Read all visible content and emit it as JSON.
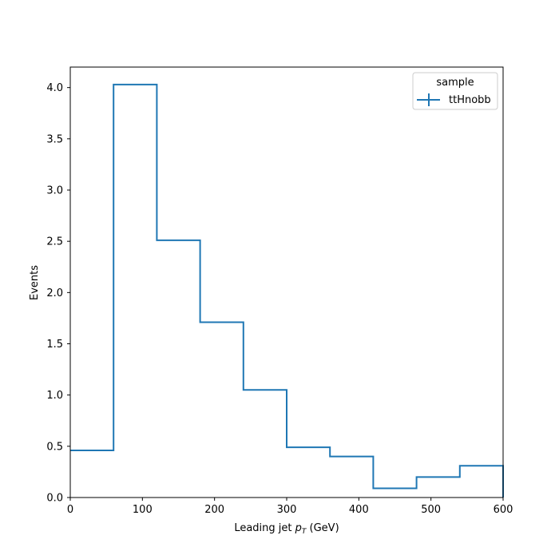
{
  "chart_data": {
    "type": "histogram-step",
    "xlabel_main": "Leading jet  ",
    "xlabel_p": "p",
    "xlabel_sub": "T",
    "xlabel_unit": " (GeV)",
    "ylabel": "Events",
    "xlim": [
      0,
      600
    ],
    "ylim": [
      0,
      4.2
    ],
    "xticks": [
      0,
      100,
      200,
      300,
      400,
      500,
      600
    ],
    "yticks": [
      0.0,
      0.5,
      1.0,
      1.5,
      2.0,
      2.5,
      3.0,
      3.5,
      4.0
    ],
    "xtick_labels": [
      "0",
      "100",
      "200",
      "300",
      "400",
      "500",
      "600"
    ],
    "ytick_labels": [
      "0.0",
      "0.5",
      "1.0",
      "1.5",
      "2.0",
      "2.5",
      "3.0",
      "3.5",
      "4.0"
    ],
    "bin_edges": [
      0,
      60,
      120,
      180,
      240,
      300,
      360,
      420,
      480,
      540,
      600
    ],
    "series": [
      {
        "name": "ttHnobb",
        "color": "#1f77b4",
        "values": [
          0.46,
          4.03,
          2.51,
          1.71,
          1.05,
          0.49,
          0.4,
          0.09,
          0.2,
          0.31
        ]
      }
    ],
    "legend": {
      "title": "sample",
      "position": "top-right"
    },
    "grid": false
  }
}
